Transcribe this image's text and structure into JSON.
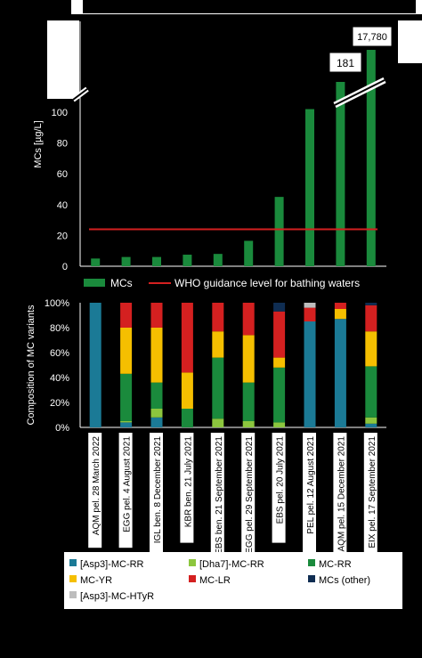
{
  "chart_data": [
    {
      "type": "bar",
      "ylabel": "MCs [µg/L]",
      "ylim": [
        0,
        110
      ],
      "yticks": [
        0,
        20,
        40,
        60,
        80,
        100
      ],
      "axis_break": true,
      "bar_color": "#1a8a3c",
      "guide_color": "#d42020",
      "series": [
        {
          "name": "MCs",
          "values": [
            5,
            6,
            6,
            7.5,
            8,
            16.5,
            45,
            102,
            181,
            17780
          ]
        }
      ],
      "data_labels": [
        {
          "index": 8,
          "text": "181"
        },
        {
          "index": 9,
          "text": "17,780"
        }
      ],
      "guideline": {
        "name": "WHO guidance level for bathing waters",
        "value": 24
      },
      "legend": [
        "MCs",
        "WHO guidance level for bathing waters"
      ]
    },
    {
      "type": "bar",
      "stacked": true,
      "ylabel": "Composition of MC variants",
      "ylim": [
        0,
        100
      ],
      "yticks": [
        "0%",
        "20%",
        "40%",
        "60%",
        "80%",
        "100%"
      ],
      "categories": [
        "AQM pel. 28 March 2022",
        "EGG pel. 4 August 2021",
        "IGL ben. 8 December 2021",
        "KBR ben. 21 July 2021",
        "EBS ben. 21 September 2021",
        "EGG pel. 29 September 2021",
        "EBS pel. 20 July 2021",
        "PEL pel. 12 August 2021",
        "AQM pel. 15 December 2021",
        "EIX pel. 17 September 2021"
      ],
      "series": [
        {
          "name": "[Asp3]-MC-RR",
          "color": "#1b7a96",
          "values": [
            100,
            4,
            8,
            0,
            0,
            0,
            0,
            85,
            87,
            3
          ]
        },
        {
          "name": "[Dha7]-MC-RR",
          "color": "#8cc63e",
          "values": [
            0,
            1,
            7,
            0,
            7,
            5,
            4,
            0,
            0,
            5
          ]
        },
        {
          "name": "MC-RR",
          "color": "#1a8a3c",
          "values": [
            0,
            38,
            21,
            15,
            49,
            31,
            44,
            0,
            0,
            41
          ]
        },
        {
          "name": "MC-YR",
          "color": "#f5bf00",
          "values": [
            0,
            37,
            44,
            29,
            21,
            38,
            8,
            0,
            8,
            28
          ]
        },
        {
          "name": "MC-LR",
          "color": "#d42020",
          "values": [
            0,
            20,
            20,
            56,
            23,
            26,
            37,
            11,
            5,
            21
          ]
        },
        {
          "name": "MCs (other)",
          "color": "#0f2d52",
          "values": [
            0,
            0,
            0,
            0,
            0,
            0,
            7,
            0,
            0,
            2
          ]
        },
        {
          "name": "[Asp3]-MC-HTyR",
          "color": "#bdbdbd",
          "values": [
            0,
            0,
            0,
            0,
            0,
            0,
            0,
            4,
            0,
            0
          ]
        }
      ],
      "legend_placement": "bottom"
    }
  ]
}
